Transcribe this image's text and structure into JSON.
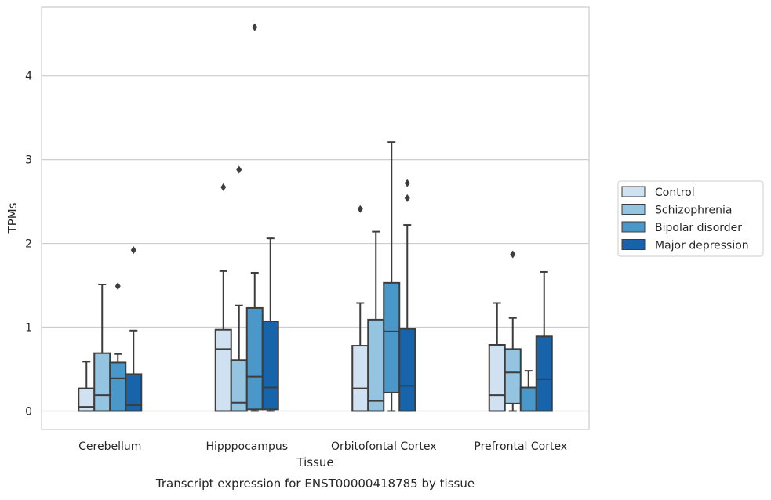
{
  "caption": "Transcript expression for ENST00000418785 by tissue",
  "chart_data": {
    "type": "boxplot",
    "title": "",
    "xlabel": "Tissue",
    "ylabel": "TPMs",
    "ylim": [
      -0.22,
      4.82
    ],
    "yticks": [
      0,
      1,
      2,
      3,
      4
    ],
    "grid": "horizontal",
    "legend_position": "right",
    "categories": [
      "Cerebellum",
      "Hipppocampus",
      "Orbitofontal Cortex",
      "Prefrontal Cortex"
    ],
    "series": [
      {
        "name": "Control",
        "color": "#d0e1f2",
        "boxes": [
          {
            "whislo": 0,
            "q1": 0,
            "med": 0.05,
            "q3": 0.27,
            "whishi": 0.59,
            "fliers": []
          },
          {
            "whislo": 0,
            "q1": 0,
            "med": 0.74,
            "q3": 0.97,
            "whishi": 1.67,
            "fliers": [
              2.67
            ]
          },
          {
            "whislo": 0,
            "q1": 0,
            "med": 0.27,
            "q3": 0.78,
            "whishi": 1.29,
            "fliers": [
              2.41
            ]
          },
          {
            "whislo": 0,
            "q1": 0,
            "med": 0.19,
            "q3": 0.79,
            "whishi": 1.29,
            "fliers": []
          }
        ]
      },
      {
        "name": "Schizophrenia",
        "color": "#94c4df",
        "boxes": [
          {
            "whislo": 0,
            "q1": 0,
            "med": 0.19,
            "q3": 0.69,
            "whishi": 1.51,
            "fliers": []
          },
          {
            "whislo": 0,
            "q1": 0,
            "med": 0.1,
            "q3": 0.61,
            "whishi": 1.26,
            "fliers": [
              2.88
            ]
          },
          {
            "whislo": 0,
            "q1": 0,
            "med": 0.12,
            "q3": 1.09,
            "whishi": 2.14,
            "fliers": []
          },
          {
            "whislo": 0,
            "q1": 0.09,
            "med": 0.46,
            "q3": 0.74,
            "whishi": 1.11,
            "fliers": [
              1.87
            ]
          }
        ]
      },
      {
        "name": "Bipolar disorder",
        "color": "#4a98c9",
        "boxes": [
          {
            "whislo": 0,
            "q1": 0,
            "med": 0.39,
            "q3": 0.58,
            "whishi": 0.68,
            "fliers": [
              1.49
            ]
          },
          {
            "whislo": 0,
            "q1": 0.02,
            "med": 0.41,
            "q3": 1.23,
            "whishi": 1.65,
            "fliers": [
              4.58
            ]
          },
          {
            "whislo": 0,
            "q1": 0.22,
            "med": 0.95,
            "q3": 1.53,
            "whishi": 3.21,
            "fliers": []
          },
          {
            "whislo": 0,
            "q1": 0,
            "med": 0,
            "q3": 0.28,
            "whishi": 0.48,
            "fliers": []
          }
        ]
      },
      {
        "name": "Major depression",
        "color": "#1764ab",
        "boxes": [
          {
            "whislo": 0,
            "q1": 0,
            "med": 0.07,
            "q3": 0.44,
            "whishi": 0.96,
            "fliers": [
              1.92
            ]
          },
          {
            "whislo": 0,
            "q1": 0.02,
            "med": 0.28,
            "q3": 1.07,
            "whishi": 2.06,
            "fliers": []
          },
          {
            "whislo": 0,
            "q1": 0,
            "med": 0.3,
            "q3": 0.98,
            "whishi": 2.22,
            "fliers": [
              2.54,
              2.72
            ]
          },
          {
            "whislo": 0,
            "q1": 0,
            "med": 0.38,
            "q3": 0.89,
            "whishi": 1.66,
            "fliers": []
          }
        ]
      }
    ]
  }
}
